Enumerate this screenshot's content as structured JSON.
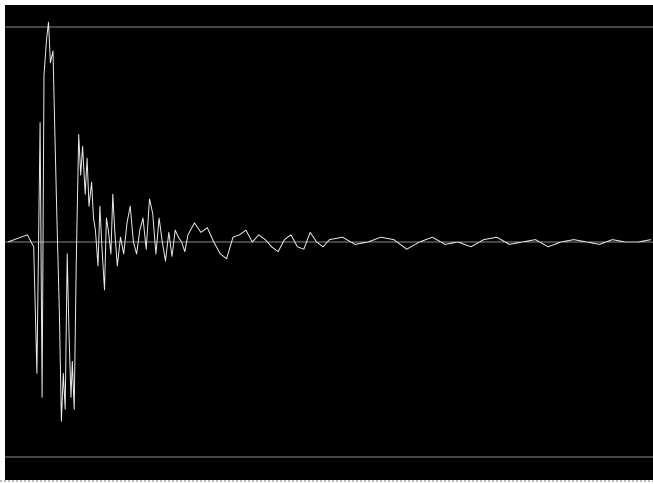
{
  "colors": {
    "background": "#000000",
    "trace": "#e8e8e8",
    "reference_line": "#8a8a8a",
    "border": "#ffffff"
  },
  "chart_data": {
    "type": "line",
    "title": "",
    "xlabel": "",
    "ylabel": "",
    "grid": false,
    "legend": "none",
    "xlim": [
      0,
      1
    ],
    "ylim": [
      -1,
      1
    ],
    "reference_lines_y": [
      0.9,
      0,
      -0.9
    ],
    "series": [
      {
        "x": [
          0.0,
          0.02,
          0.03,
          0.04,
          0.045,
          0.05,
          0.053,
          0.056,
          0.06,
          0.063,
          0.066,
          0.07,
          0.073,
          0.076,
          0.08,
          0.083,
          0.086,
          0.089,
          0.092,
          0.095,
          0.098,
          0.1,
          0.103,
          0.106,
          0.11,
          0.113,
          0.116,
          0.12,
          0.123,
          0.126,
          0.13,
          0.133,
          0.136,
          0.14,
          0.143,
          0.146,
          0.15,
          0.153,
          0.156,
          0.16,
          0.163,
          0.166,
          0.17,
          0.175,
          0.18,
          0.185,
          0.19,
          0.195,
          0.2,
          0.205,
          0.21,
          0.215,
          0.22,
          0.225,
          0.23,
          0.235,
          0.24,
          0.245,
          0.25,
          0.255,
          0.26,
          0.265,
          0.27,
          0.275,
          0.28,
          0.29,
          0.3,
          0.31,
          0.32,
          0.33,
          0.34,
          0.35,
          0.36,
          0.37,
          0.38,
          0.39,
          0.4,
          0.41,
          0.42,
          0.43,
          0.44,
          0.45,
          0.46,
          0.47,
          0.48,
          0.49,
          0.5,
          0.52,
          0.54,
          0.56,
          0.58,
          0.6,
          0.62,
          0.64,
          0.66,
          0.68,
          0.7,
          0.72,
          0.74,
          0.76,
          0.78,
          0.8,
          0.82,
          0.84,
          0.86,
          0.88,
          0.9,
          0.92,
          0.94,
          0.96,
          0.98,
          1.0
        ],
        "y": [
          0.0,
          0.02,
          0.03,
          -0.02,
          -0.55,
          0.5,
          -0.65,
          0.7,
          0.85,
          0.92,
          0.75,
          0.8,
          0.45,
          0.1,
          -0.3,
          -0.75,
          -0.55,
          -0.7,
          -0.05,
          -0.4,
          -0.65,
          -0.5,
          -0.7,
          -0.1,
          0.45,
          0.28,
          0.4,
          0.2,
          0.35,
          0.15,
          0.25,
          0.1,
          0.05,
          -0.1,
          0.15,
          -0.02,
          -0.2,
          0.1,
          0.05,
          -0.05,
          0.2,
          0.05,
          -0.1,
          0.02,
          -0.05,
          0.08,
          0.15,
          0.0,
          -0.05,
          0.05,
          0.1,
          -0.03,
          0.18,
          0.12,
          -0.05,
          0.1,
          0.0,
          -0.08,
          0.04,
          -0.06,
          0.05,
          0.02,
          0.0,
          -0.04,
          0.03,
          0.08,
          0.04,
          0.06,
          0.0,
          -0.05,
          -0.07,
          0.02,
          0.03,
          0.05,
          0.0,
          0.03,
          0.01,
          -0.02,
          -0.04,
          0.01,
          0.03,
          -0.02,
          -0.03,
          0.04,
          0.0,
          -0.02,
          0.01,
          0.02,
          -0.01,
          0.0,
          0.02,
          0.01,
          -0.03,
          0.0,
          0.02,
          -0.01,
          0.0,
          -0.02,
          0.01,
          0.02,
          -0.01,
          0.0,
          0.01,
          -0.02,
          0.0,
          0.01,
          0.0,
          -0.01,
          0.01,
          0.0,
          0.0,
          0.01
        ]
      }
    ]
  }
}
